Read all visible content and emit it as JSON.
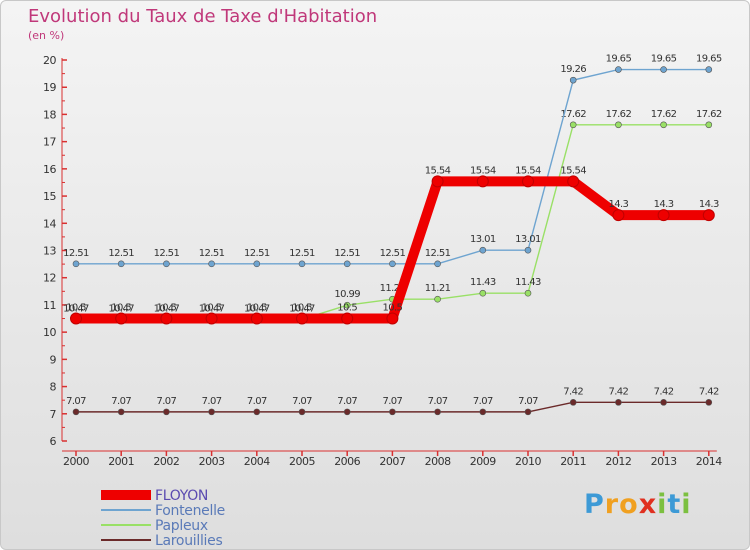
{
  "title": "Evolution du Taux de Taxe d'Habitation",
  "subtitle": "(en %)",
  "logo": {
    "letters": [
      "P",
      "r",
      "o",
      "x",
      "i",
      "t",
      "i"
    ],
    "colors": [
      "#3d9ad6",
      "#f0a020",
      "#f0a020",
      "#e03020",
      "#7cc040",
      "#3d9ad6",
      "#7cc040"
    ]
  },
  "chart_data": {
    "type": "line",
    "x": [
      "2000",
      "2001",
      "2002",
      "2003",
      "2004",
      "2005",
      "2006",
      "2007",
      "2008",
      "2009",
      "2010",
      "2011",
      "2012",
      "2013",
      "2014"
    ],
    "ylim": [
      6,
      20
    ],
    "yticks": [
      6,
      7,
      8,
      9,
      10,
      11,
      12,
      13,
      14,
      15,
      16,
      17,
      18,
      19,
      20
    ],
    "grid": false,
    "legend_position": "bottom-left",
    "series": [
      {
        "name": "Larouillies",
        "color": "#6b2a2a",
        "values": [
          7.07,
          7.07,
          7.07,
          7.07,
          7.07,
          7.07,
          7.07,
          7.07,
          7.07,
          7.07,
          7.07,
          7.42,
          7.42,
          7.42,
          7.42
        ],
        "labels": [
          "7.07",
          "7.07",
          "7.07",
          "7.07",
          "7.07",
          "7.07",
          "7.07",
          "7.07",
          "7.07",
          "7.07",
          "7.07",
          "7.42",
          "7.42",
          "7.42",
          "7.42"
        ]
      },
      {
        "name": "Papleux",
        "color": "#99e066",
        "values": [
          10.47,
          10.47,
          10.47,
          10.47,
          10.47,
          10.47,
          10.99,
          11.21,
          11.21,
          11.43,
          11.43,
          17.62,
          17.62,
          17.62,
          17.62
        ],
        "labels": [
          "10.47",
          "10.47",
          "10.47",
          "10.47",
          "10.47",
          "10.47",
          "10.99",
          "11.21",
          "11.21",
          "11.43",
          "11.43",
          "17.62",
          "17.62",
          "17.62",
          "17.62"
        ]
      },
      {
        "name": "Fontenelle",
        "color": "#6ea4d0",
        "values": [
          12.51,
          12.51,
          12.51,
          12.51,
          12.51,
          12.51,
          12.51,
          12.51,
          12.51,
          13.01,
          13.01,
          19.26,
          19.65,
          19.65,
          19.65
        ],
        "labels": [
          "12.51",
          "12.51",
          "12.51",
          "12.51",
          "12.51",
          "12.51",
          "12.51",
          "12.51",
          "12.51",
          "13.01",
          "13.01",
          "19.26",
          "19.65",
          "19.65",
          "19.65"
        ]
      },
      {
        "name": "FLOYON",
        "color": "#ee0000",
        "values": [
          10.5,
          10.5,
          10.5,
          10.5,
          10.5,
          10.5,
          10.5,
          10.5,
          15.54,
          15.54,
          15.54,
          15.54,
          14.3,
          14.3,
          14.3
        ],
        "labels": [
          "10.5",
          "10.5",
          "10.5",
          "10.5",
          "10.5",
          "10.5",
          "10.5",
          "10.5",
          "15.54",
          "15.54",
          "15.54",
          "15.54",
          "14.3",
          "14.3",
          "14.3"
        ]
      }
    ],
    "legend_order": [
      "FLOYON",
      "Fontenelle",
      "Papleux",
      "Larouillies"
    ]
  }
}
